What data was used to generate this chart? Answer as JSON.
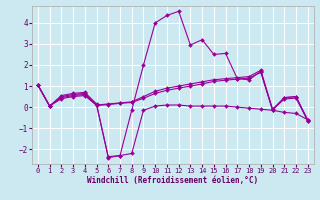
{
  "xlabel": "Windchill (Refroidissement éolien,°C)",
  "background_color": "#cce8f0",
  "grid_color": "#ffffff",
  "line_color": "#990099",
  "xlim": [
    -0.5,
    23.5
  ],
  "ylim": [
    -2.7,
    4.8
  ],
  "yticks": [
    -2,
    -1,
    0,
    1,
    2,
    3,
    4
  ],
  "xticks": [
    0,
    1,
    2,
    3,
    4,
    5,
    6,
    7,
    8,
    9,
    10,
    11,
    12,
    13,
    14,
    15,
    16,
    17,
    18,
    19,
    20,
    21,
    22,
    23
  ],
  "series": [
    {
      "x": [
        0,
        1,
        2,
        3,
        4,
        5,
        6,
        7,
        8,
        9,
        10,
        11,
        12,
        13,
        14,
        15,
        16,
        17,
        18,
        19,
        20,
        21,
        22,
        23
      ],
      "y": [
        1.05,
        0.05,
        0.55,
        0.65,
        0.7,
        0.15,
        -2.4,
        -2.3,
        -0.15,
        2.0,
        4.0,
        4.35,
        4.55,
        2.95,
        3.2,
        2.5,
        2.55,
        1.35,
        1.3,
        1.7,
        -0.15,
        0.45,
        0.5,
        -0.65
      ]
    },
    {
      "x": [
        0,
        1,
        2,
        3,
        4,
        5,
        6,
        7,
        8,
        9,
        10,
        11,
        12,
        13,
        14,
        15,
        16,
        17,
        18,
        19,
        20,
        21,
        22,
        23
      ],
      "y": [
        1.05,
        0.05,
        0.5,
        0.6,
        0.65,
        0.1,
        -2.35,
        -2.3,
        -2.2,
        -0.15,
        0.05,
        0.1,
        0.1,
        0.05,
        0.05,
        0.05,
        0.05,
        0.0,
        -0.05,
        -0.1,
        -0.15,
        -0.25,
        -0.3,
        -0.6
      ]
    },
    {
      "x": [
        0,
        1,
        2,
        3,
        4,
        5,
        6,
        7,
        8,
        9,
        10,
        11,
        12,
        13,
        14,
        15,
        16,
        17,
        18,
        19,
        20,
        21,
        22,
        23
      ],
      "y": [
        1.05,
        0.05,
        0.45,
        0.55,
        0.6,
        0.1,
        0.15,
        0.2,
        0.25,
        0.5,
        0.75,
        0.9,
        1.0,
        1.1,
        1.2,
        1.3,
        1.35,
        1.4,
        1.45,
        1.75,
        -0.1,
        0.45,
        0.5,
        -0.6
      ]
    },
    {
      "x": [
        0,
        1,
        2,
        3,
        4,
        5,
        6,
        7,
        8,
        9,
        10,
        11,
        12,
        13,
        14,
        15,
        16,
        17,
        18,
        19,
        20,
        21,
        22,
        23
      ],
      "y": [
        1.05,
        0.05,
        0.4,
        0.5,
        0.55,
        0.08,
        0.12,
        0.18,
        0.22,
        0.42,
        0.65,
        0.8,
        0.9,
        1.0,
        1.1,
        1.22,
        1.28,
        1.33,
        1.38,
        1.65,
        -0.12,
        0.38,
        0.43,
        -0.65
      ]
    }
  ]
}
